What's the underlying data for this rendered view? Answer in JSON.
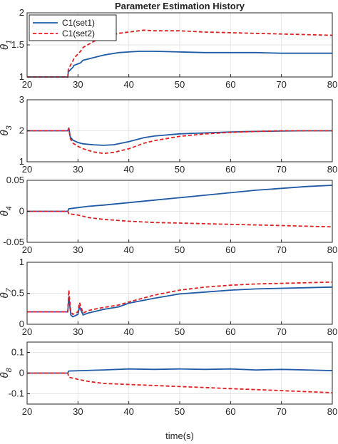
{
  "title": "Parameter Estimation History",
  "xlabel": "time(s)",
  "legend": [
    {
      "label": "C1(set1)",
      "color": "#1f5aa6",
      "style": "solid"
    },
    {
      "label": "C1(set2)",
      "color": "#e02020",
      "style": "dashed"
    }
  ],
  "chart_data": [
    {
      "type": "line",
      "ylabel_main": "θ",
      "ylabel_sub": "1",
      "xlim": [
        20,
        80
      ],
      "ylim": [
        1,
        2
      ],
      "xticks": [
        "20",
        "30",
        "40",
        "50",
        "60",
        "70",
        "80"
      ],
      "yticks": [
        "1",
        "1.5",
        "2"
      ],
      "yticks_values": [
        1,
        1.5,
        2
      ],
      "grid": true,
      "legend": "top-left",
      "series": [
        {
          "name": "C1(set1)",
          "x": [
            20,
            28,
            28.1,
            29,
            29.2,
            30.5,
            31,
            33,
            35,
            38,
            40,
            42,
            45,
            50,
            55,
            60,
            65,
            70,
            75,
            80
          ],
          "y": [
            1,
            1,
            1.08,
            1.15,
            1.18,
            1.22,
            1.26,
            1.3,
            1.34,
            1.38,
            1.39,
            1.4,
            1.4,
            1.39,
            1.38,
            1.38,
            1.38,
            1.37,
            1.37,
            1.37
          ]
        },
        {
          "name": "C1(set2)",
          "x": [
            20,
            28,
            28.1,
            29,
            29.3,
            30.5,
            31,
            33,
            35,
            38,
            40,
            43,
            45,
            50,
            55,
            60,
            65,
            70,
            75,
            80
          ],
          "y": [
            1,
            1,
            1.12,
            1.25,
            1.3,
            1.4,
            1.46,
            1.55,
            1.62,
            1.68,
            1.7,
            1.73,
            1.72,
            1.72,
            1.7,
            1.69,
            1.68,
            1.67,
            1.66,
            1.65
          ]
        }
      ]
    },
    {
      "type": "line",
      "ylabel_main": "θ",
      "ylabel_sub": "3",
      "xlim": [
        20,
        80
      ],
      "ylim": [
        1,
        3
      ],
      "xticks": [
        "20",
        "30",
        "40",
        "50",
        "60",
        "70",
        "80"
      ],
      "yticks": [
        "1",
        "2",
        "3"
      ],
      "yticks_values": [
        1,
        2,
        3
      ],
      "grid": true,
      "series": [
        {
          "name": "C1(set1)",
          "x": [
            20,
            28,
            28.2,
            28.5,
            29,
            30,
            31,
            33,
            35,
            37,
            40,
            43,
            45,
            50,
            55,
            60,
            65,
            70,
            75,
            80
          ],
          "y": [
            2,
            2,
            2.1,
            1.8,
            1.7,
            1.62,
            1.58,
            1.55,
            1.53,
            1.55,
            1.65,
            1.78,
            1.83,
            1.9,
            1.93,
            1.96,
            1.98,
            1.99,
            2,
            2
          ]
        },
        {
          "name": "C1(set2)",
          "x": [
            20,
            28,
            28.2,
            28.5,
            29,
            30,
            31,
            33,
            35,
            37,
            40,
            43,
            45,
            50,
            55,
            60,
            65,
            70,
            75,
            80
          ],
          "y": [
            2,
            2,
            2.05,
            1.75,
            1.6,
            1.5,
            1.42,
            1.32,
            1.27,
            1.3,
            1.42,
            1.6,
            1.68,
            1.82,
            1.9,
            1.95,
            1.98,
            2,
            2,
            2
          ]
        }
      ]
    },
    {
      "type": "line",
      "ylabel_main": "θ",
      "ylabel_sub": "4",
      "xlim": [
        20,
        80
      ],
      "ylim": [
        -0.05,
        0.05
      ],
      "xticks": [
        "20",
        "30",
        "40",
        "50",
        "60",
        "70",
        "80"
      ],
      "yticks": [
        "-0.05",
        "0",
        "0.05"
      ],
      "yticks_values": [
        -0.05,
        0,
        0.05
      ],
      "grid": true,
      "series": [
        {
          "name": "C1(set1)",
          "x": [
            20,
            28,
            28.2,
            30,
            32,
            35,
            40,
            45,
            50,
            55,
            60,
            65,
            70,
            75,
            80
          ],
          "y": [
            0,
            0,
            0.004,
            0.006,
            0.008,
            0.01,
            0.014,
            0.018,
            0.022,
            0.026,
            0.03,
            0.034,
            0.037,
            0.04,
            0.042
          ]
        },
        {
          "name": "C1(set2)",
          "x": [
            20,
            28,
            28.2,
            30,
            32,
            35,
            40,
            45,
            50,
            55,
            60,
            65,
            70,
            75,
            80
          ],
          "y": [
            0,
            0,
            -0.004,
            -0.006,
            -0.01,
            -0.013,
            -0.016,
            -0.018,
            -0.019,
            -0.02,
            -0.021,
            -0.022,
            -0.023,
            -0.024,
            -0.025
          ]
        }
      ]
    },
    {
      "type": "line",
      "ylabel_main": "θ",
      "ylabel_sub": "7",
      "xlim": [
        20,
        80
      ],
      "ylim": [
        0,
        1
      ],
      "xticks": [
        "20",
        "30",
        "40",
        "50",
        "60",
        "70",
        "80"
      ],
      "yticks": [
        "0",
        "0.5",
        "1"
      ],
      "yticks_values": [
        0,
        0.5,
        1
      ],
      "grid": true,
      "series": [
        {
          "name": "C1(set1)",
          "x": [
            20,
            28,
            28.2,
            28.6,
            29,
            30,
            30.3,
            31,
            32,
            33,
            35,
            38,
            40,
            45,
            50,
            55,
            60,
            65,
            70,
            75,
            80
          ],
          "y": [
            0.2,
            0.2,
            0.45,
            0.15,
            0.12,
            0.16,
            0.28,
            0.15,
            0.18,
            0.2,
            0.24,
            0.28,
            0.34,
            0.42,
            0.49,
            0.52,
            0.55,
            0.57,
            0.58,
            0.59,
            0.6
          ]
        },
        {
          "name": "C1(set2)",
          "x": [
            20,
            28,
            28.2,
            28.6,
            29,
            30,
            30.3,
            31,
            32,
            33,
            35,
            38,
            40,
            45,
            50,
            55,
            60,
            65,
            70,
            75,
            80
          ],
          "y": [
            0.2,
            0.2,
            0.55,
            0.2,
            0.16,
            0.2,
            0.35,
            0.18,
            0.22,
            0.24,
            0.27,
            0.31,
            0.36,
            0.47,
            0.55,
            0.6,
            0.63,
            0.65,
            0.66,
            0.67,
            0.68
          ]
        }
      ]
    },
    {
      "type": "line",
      "ylabel_main": "θ",
      "ylabel_sub": "8",
      "xlim": [
        20,
        80
      ],
      "ylim": [
        -0.15,
        0.15
      ],
      "xticks": [
        "20",
        "30",
        "40",
        "50",
        "60",
        "70",
        "80"
      ],
      "yticks": [
        "-0.1",
        "0",
        "0.1"
      ],
      "yticks_values": [
        -0.1,
        0,
        0.1
      ],
      "grid": true,
      "series": [
        {
          "name": "C1(set1)",
          "x": [
            20,
            28,
            28.2,
            35,
            40,
            45,
            50,
            55,
            60,
            65,
            70,
            75,
            80
          ],
          "y": [
            0,
            0,
            0.01,
            0.015,
            0.02,
            0.018,
            0.02,
            0.018,
            0.02,
            0.015,
            0.018,
            0.015,
            0.012
          ]
        },
        {
          "name": "C1(set2)",
          "x": [
            20,
            28,
            28.2,
            30,
            32,
            35,
            40,
            45,
            50,
            55,
            60,
            65,
            70,
            75,
            80
          ],
          "y": [
            0,
            0,
            -0.02,
            -0.03,
            -0.04,
            -0.05,
            -0.055,
            -0.06,
            -0.065,
            -0.07,
            -0.075,
            -0.08,
            -0.085,
            -0.09,
            -0.095
          ]
        }
      ]
    }
  ]
}
